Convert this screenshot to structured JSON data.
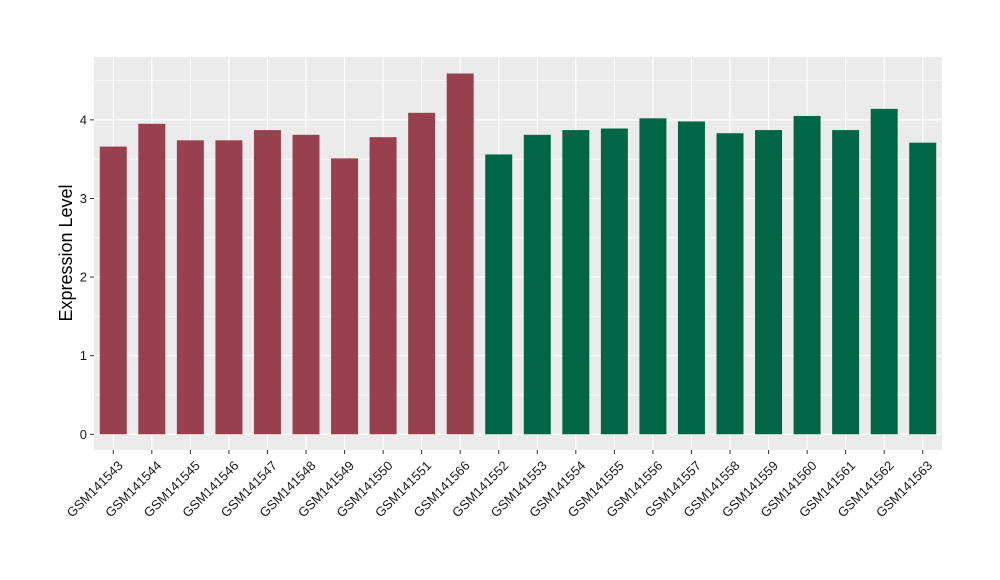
{
  "chart_data": {
    "type": "bar",
    "title": "",
    "xlabel": "",
    "ylabel": "Expression Level",
    "ylim": [
      -0.2,
      4.8
    ],
    "yticks": [
      0,
      1,
      2,
      3,
      4
    ],
    "grid": true,
    "legend": "none",
    "categories": [
      "GSM141543",
      "GSM141544",
      "GSM141545",
      "GSM141546",
      "GSM141547",
      "GSM141548",
      "GSM141549",
      "GSM141550",
      "GSM141551",
      "GSM141566",
      "GSM141552",
      "GSM141553",
      "GSM141554",
      "GSM141555",
      "GSM141556",
      "GSM141557",
      "GSM141558",
      "GSM141559",
      "GSM141560",
      "GSM141561",
      "GSM141562",
      "GSM141563"
    ],
    "values": [
      3.66,
      3.95,
      3.74,
      3.74,
      3.87,
      3.81,
      3.51,
      3.78,
      4.09,
      4.59,
      3.56,
      3.81,
      3.87,
      3.89,
      4.02,
      3.98,
      3.83,
      3.87,
      4.05,
      3.87,
      4.14,
      3.71
    ],
    "group_index": [
      0,
      0,
      0,
      0,
      0,
      0,
      0,
      0,
      0,
      0,
      1,
      1,
      1,
      1,
      1,
      1,
      1,
      1,
      1,
      1,
      1,
      1
    ],
    "colors": [
      "#99404f",
      "#006645"
    ],
    "panel_background": "#ebebeb",
    "grid_color": "#ffffff"
  }
}
